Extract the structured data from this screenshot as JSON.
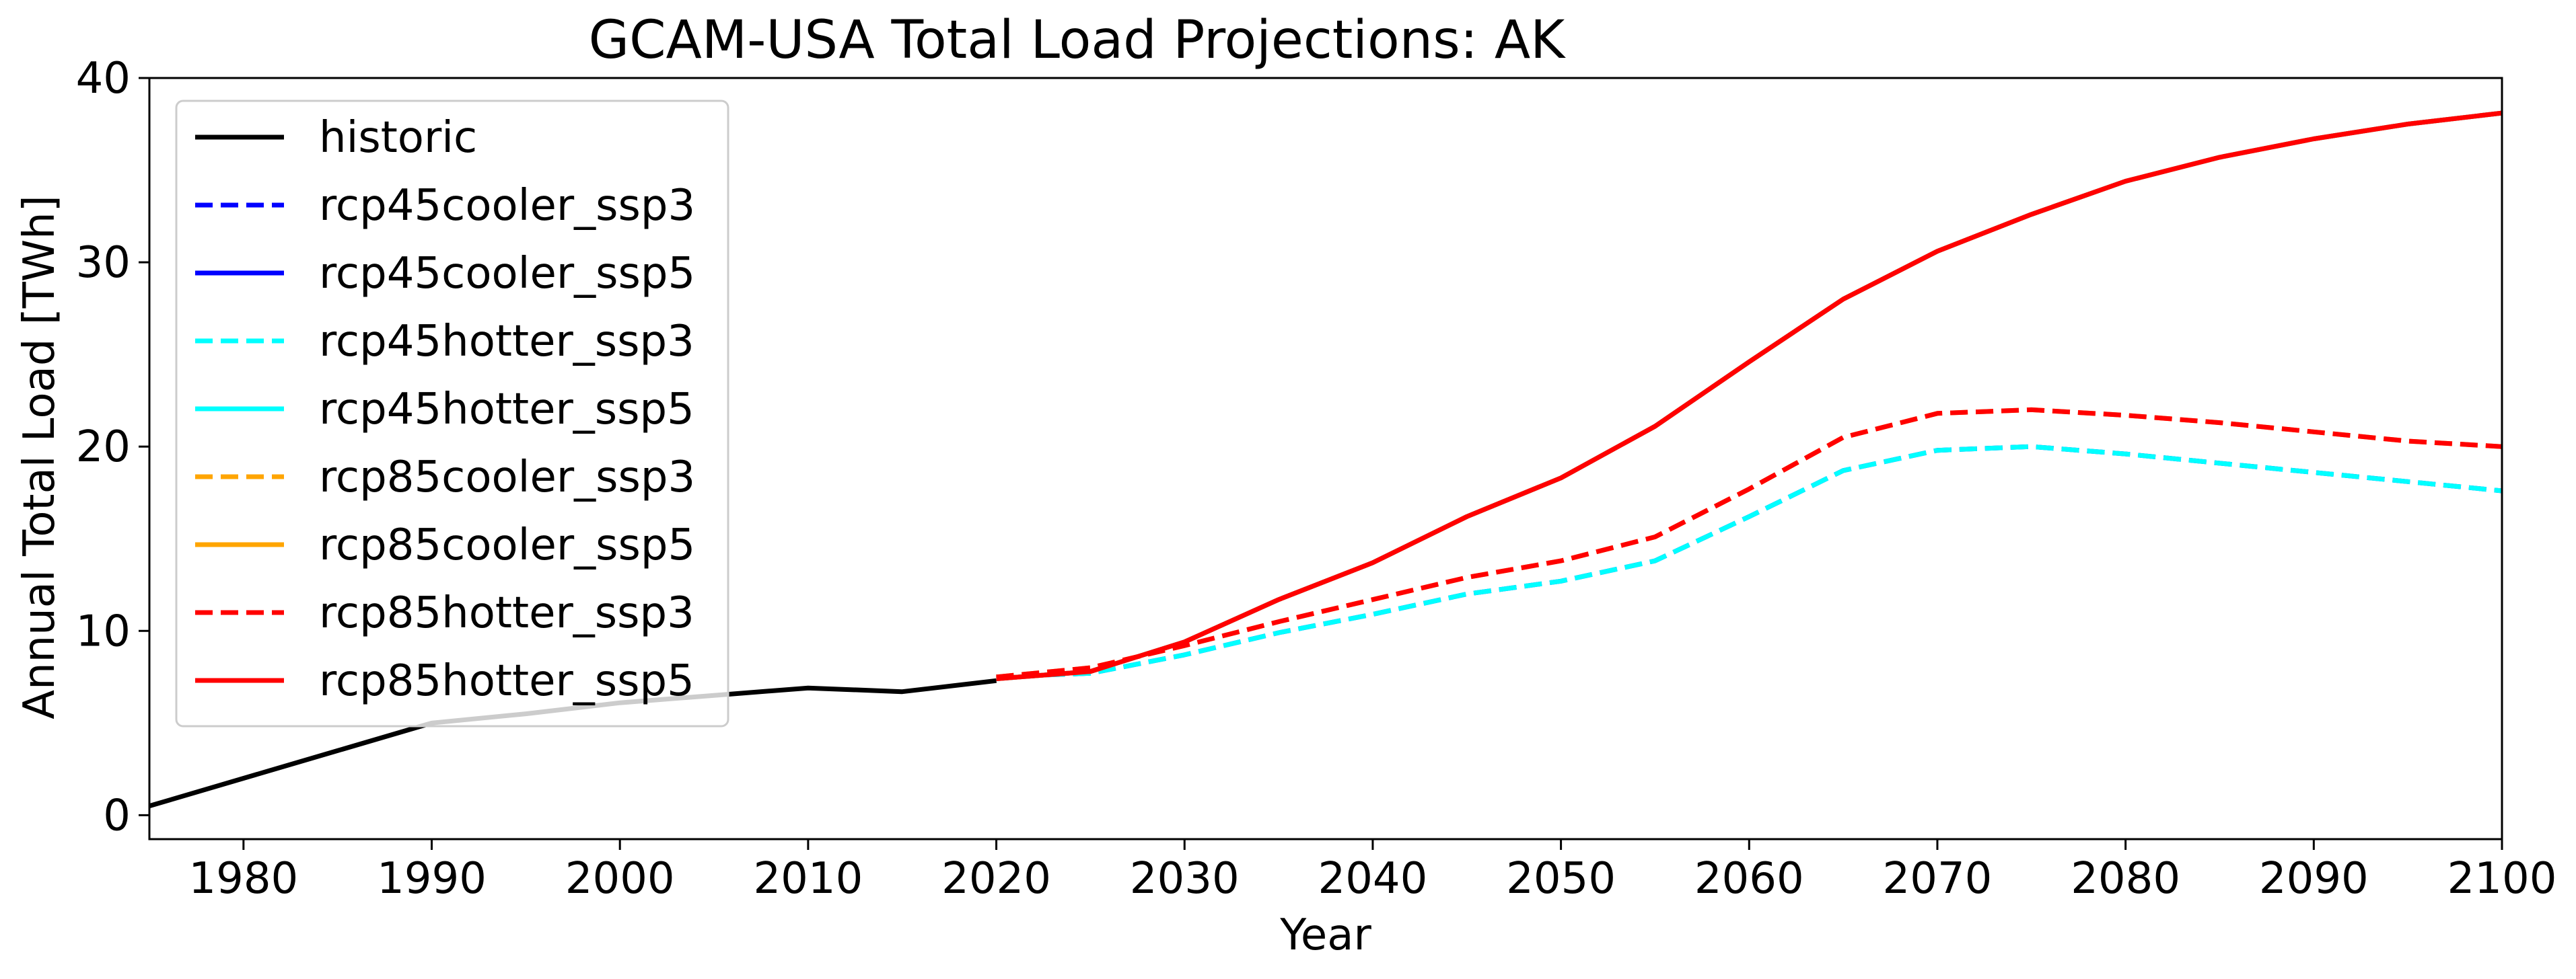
{
  "chart_data": {
    "type": "line",
    "title": "GCAM-USA Total Load Projections: AK",
    "xlabel": "Year",
    "ylabel": "Annual Total Load [TWh]",
    "xlim": [
      1975,
      2100
    ],
    "ylim": [
      -1.3,
      40
    ],
    "xticks": [
      1980,
      1990,
      2000,
      2010,
      2020,
      2030,
      2040,
      2050,
      2060,
      2070,
      2080,
      2090,
      2100
    ],
    "yticks": [
      0,
      10,
      20,
      30,
      40
    ],
    "grid": false,
    "legend_position": "upper-left",
    "series": [
      {
        "name": "historic",
        "color": "#000000",
        "dash": "solid",
        "x": [
          1975,
          1980,
          1985,
          1990,
          1995,
          2000,
          2005,
          2010,
          2015,
          2020
        ],
        "y": [
          0.5,
          2.0,
          3.5,
          5.0,
          5.5,
          6.1,
          6.5,
          6.9,
          6.7,
          7.3
        ]
      },
      {
        "name": "rcp45cooler_ssp3",
        "color": "#0000ff",
        "dash": "dashed",
        "x": [
          2020,
          2025,
          2030,
          2035,
          2040,
          2045,
          2050,
          2055,
          2060,
          2065,
          2070,
          2075,
          2080,
          2085,
          2090,
          2095,
          2100
        ],
        "y": [
          7.5,
          7.7,
          8.7,
          9.9,
          10.9,
          12.0,
          12.7,
          13.8,
          16.2,
          18.7,
          19.8,
          20.0,
          19.6,
          19.1,
          18.6,
          18.1,
          17.6
        ]
      },
      {
        "name": "rcp45cooler_ssp5",
        "color": "#0000ff",
        "dash": "solid",
        "x": [
          2020,
          2025,
          2030,
          2035,
          2040,
          2045,
          2050,
          2055,
          2060,
          2065,
          2070,
          2075,
          2080,
          2085,
          2090,
          2095,
          2100
        ],
        "y": [
          7.4,
          7.8,
          9.4,
          11.7,
          13.7,
          16.2,
          18.3,
          21.1,
          24.6,
          28.0,
          30.6,
          32.6,
          34.4,
          35.7,
          36.7,
          37.5,
          38.1
        ]
      },
      {
        "name": "rcp45hotter_ssp3",
        "color": "#00ffff",
        "dash": "dashed",
        "x": [
          2020,
          2025,
          2030,
          2035,
          2040,
          2045,
          2050,
          2055,
          2060,
          2065,
          2070,
          2075,
          2080,
          2085,
          2090,
          2095,
          2100
        ],
        "y": [
          7.5,
          7.7,
          8.7,
          9.9,
          10.9,
          12.0,
          12.7,
          13.8,
          16.2,
          18.7,
          19.8,
          20.0,
          19.6,
          19.1,
          18.6,
          18.1,
          17.6
        ]
      },
      {
        "name": "rcp45hotter_ssp5",
        "color": "#00ffff",
        "dash": "solid",
        "x": [
          2020,
          2025,
          2030,
          2035,
          2040,
          2045,
          2050,
          2055,
          2060,
          2065,
          2070,
          2075,
          2080,
          2085,
          2090,
          2095,
          2100
        ],
        "y": [
          7.4,
          7.8,
          9.4,
          11.7,
          13.7,
          16.2,
          18.3,
          21.1,
          24.6,
          28.0,
          30.6,
          32.6,
          34.4,
          35.7,
          36.7,
          37.5,
          38.1
        ]
      },
      {
        "name": "rcp85cooler_ssp3",
        "color": "#ffa500",
        "dash": "dashed",
        "x": [
          2020,
          2025,
          2030,
          2035,
          2040,
          2045,
          2050,
          2055,
          2060,
          2065,
          2070,
          2075,
          2080,
          2085,
          2090,
          2095,
          2100
        ],
        "y": [
          7.5,
          8.0,
          9.2,
          10.5,
          11.7,
          12.9,
          13.8,
          15.1,
          17.7,
          20.5,
          21.8,
          22.0,
          21.7,
          21.3,
          20.8,
          20.3,
          20.0
        ]
      },
      {
        "name": "rcp85cooler_ssp5",
        "color": "#ffa500",
        "dash": "solid",
        "x": [
          2020,
          2025,
          2030,
          2035,
          2040,
          2045,
          2050,
          2055,
          2060,
          2065,
          2070,
          2075,
          2080,
          2085,
          2090,
          2095,
          2100
        ],
        "y": [
          7.4,
          7.8,
          9.4,
          11.7,
          13.7,
          16.2,
          18.3,
          21.1,
          24.6,
          28.0,
          30.6,
          32.6,
          34.4,
          35.7,
          36.7,
          37.5,
          38.1
        ]
      },
      {
        "name": "rcp85hotter_ssp3",
        "color": "#ff0000",
        "dash": "dashed",
        "x": [
          2020,
          2025,
          2030,
          2035,
          2040,
          2045,
          2050,
          2055,
          2060,
          2065,
          2070,
          2075,
          2080,
          2085,
          2090,
          2095,
          2100
        ],
        "y": [
          7.5,
          8.0,
          9.2,
          10.5,
          11.7,
          12.9,
          13.8,
          15.1,
          17.7,
          20.5,
          21.8,
          22.0,
          21.7,
          21.3,
          20.8,
          20.3,
          20.0
        ]
      },
      {
        "name": "rcp85hotter_ssp5",
        "color": "#ff0000",
        "dash": "solid",
        "x": [
          2020,
          2025,
          2030,
          2035,
          2040,
          2045,
          2050,
          2055,
          2060,
          2065,
          2070,
          2075,
          2080,
          2085,
          2090,
          2095,
          2100
        ],
        "y": [
          7.4,
          7.8,
          9.4,
          11.7,
          13.7,
          16.2,
          18.3,
          21.1,
          24.6,
          28.0,
          30.6,
          32.6,
          34.4,
          35.7,
          36.7,
          37.5,
          38.1
        ]
      }
    ]
  }
}
